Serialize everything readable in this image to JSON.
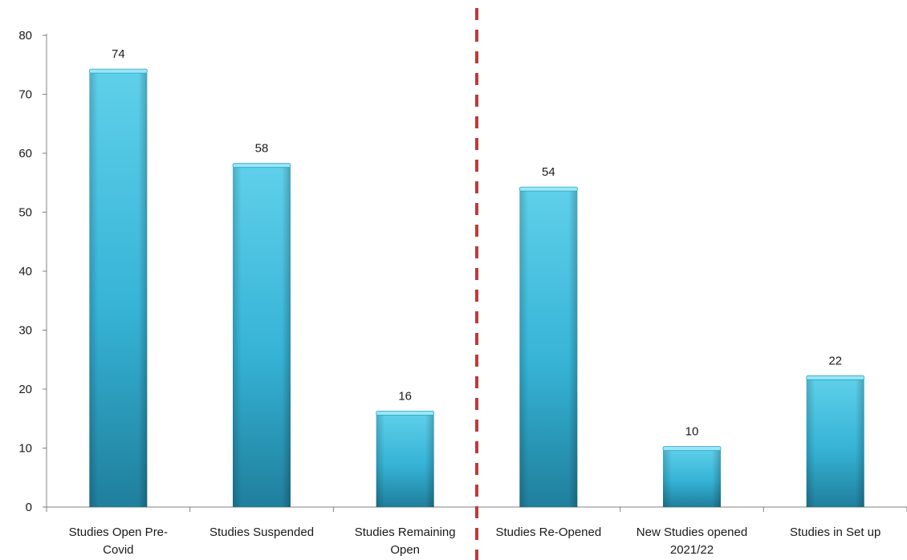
{
  "chart_data": {
    "type": "bar",
    "categories": [
      [
        "Studies Open Pre-",
        "Covid"
      ],
      [
        "Studies Suspended"
      ],
      [
        "Studies Remaining",
        "Open"
      ],
      [
        "Studies Re-Opened"
      ],
      [
        "New Studies opened",
        "2021/22"
      ],
      [
        "Studies in Set up"
      ]
    ],
    "values": [
      74,
      58,
      16,
      54,
      10,
      22
    ],
    "data_labels": [
      "74",
      "58",
      "16",
      "54",
      "10",
      "22"
    ],
    "ylim": [
      0,
      80
    ],
    "yticks": [
      "0",
      "10",
      "20",
      "30",
      "40",
      "50",
      "60",
      "70",
      "80"
    ],
    "title": "",
    "xlabel": "",
    "ylabel": "",
    "grid": false,
    "legend": "none",
    "divider": {
      "after_category_index": 2,
      "style": "dashed",
      "color": "#c0393b"
    },
    "colors": {
      "bar_light": "#5fd0ea",
      "bar_mid": "#36b3d6",
      "bar_dark": "#1f8aa9",
      "bar_top": "#9be6f6",
      "axis": "#808080"
    }
  }
}
